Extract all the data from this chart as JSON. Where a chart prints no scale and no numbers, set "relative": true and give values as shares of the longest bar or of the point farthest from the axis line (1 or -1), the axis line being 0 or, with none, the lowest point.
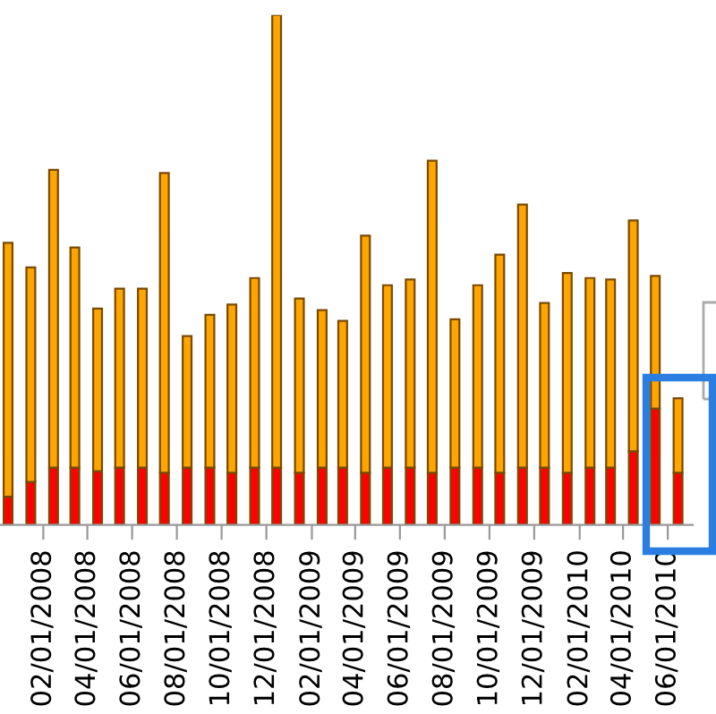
{
  "chart_data": {
    "type": "bar",
    "stacked": true,
    "relative": true,
    "x": [
      "2007-12-15",
      "2008-01-15",
      "2008-02-15",
      "2008-03-15",
      "2008-04-15",
      "2008-05-15",
      "2008-06-15",
      "2008-07-15",
      "2008-08-15",
      "2008-09-15",
      "2008-10-15",
      "2008-11-15",
      "2008-12-15",
      "2009-01-15",
      "2009-02-15",
      "2009-03-15",
      "2009-04-15",
      "2009-05-15",
      "2009-06-15",
      "2009-07-15",
      "2009-08-15",
      "2009-09-15",
      "2009-10-15",
      "2009-11-15",
      "2009-12-15",
      "2010-01-15",
      "2010-02-15",
      "2010-03-15",
      "2010-04-15",
      "2010-05-15",
      "2010-06-15"
    ],
    "xlim": [
      "2007-12-04",
      "2010-07-05"
    ],
    "xticks": [
      {
        "value": "2008-02-01",
        "label": "02/01/2008"
      },
      {
        "value": "2008-04-01",
        "label": "04/01/2008"
      },
      {
        "value": "2008-06-01",
        "label": "06/01/2008"
      },
      {
        "value": "2008-08-01",
        "label": "08/01/2008"
      },
      {
        "value": "2008-10-01",
        "label": "10/01/2008"
      },
      {
        "value": "2008-12-01",
        "label": "12/01/2008"
      },
      {
        "value": "2009-02-01",
        "label": "02/01/2009"
      },
      {
        "value": "2009-04-01",
        "label": "04/01/2009"
      },
      {
        "value": "2009-06-01",
        "label": "06/01/2009"
      },
      {
        "value": "2009-08-01",
        "label": "08/01/2009"
      },
      {
        "value": "2009-10-01",
        "label": "10/01/2009"
      },
      {
        "value": "2009-12-01",
        "label": "12/01/2009"
      },
      {
        "value": "2010-02-01",
        "label": "02/01/2010"
      },
      {
        "value": "2010-04-01",
        "label": "04/01/2010"
      },
      {
        "value": "2010-06-01",
        "label": "06/01/2010"
      }
    ],
    "series": [
      {
        "color": "#ff0000",
        "values": [
          0.055,
          0.084,
          0.112,
          0.112,
          0.105,
          0.112,
          0.112,
          0.102,
          0.112,
          0.112,
          0.102,
          0.112,
          0.112,
          0.102,
          0.112,
          0.112,
          0.102,
          0.112,
          0.112,
          0.102,
          0.112,
          0.112,
          0.102,
          0.112,
          0.112,
          0.102,
          0.112,
          0.112,
          0.144,
          0.228,
          0.102
        ]
      },
      {
        "color": "#ffa500",
        "values": [
          0.498,
          0.421,
          0.584,
          0.432,
          0.319,
          0.351,
          0.351,
          0.588,
          0.258,
          0.3,
          0.33,
          0.372,
          0.888,
          0.342,
          0.309,
          0.288,
          0.465,
          0.358,
          0.369,
          0.612,
          0.291,
          0.358,
          0.428,
          0.516,
          0.323,
          0.392,
          0.372,
          0.369,
          0.453,
          0.26,
          0.146
        ]
      }
    ],
    "grid": false,
    "legend": false
  }
}
